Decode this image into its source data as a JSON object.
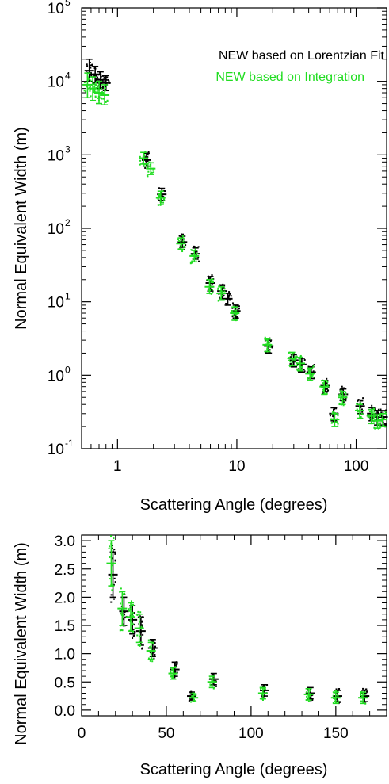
{
  "colors": {
    "lorentzian": "#000000",
    "integration": "#22dd22"
  },
  "chart_data": [
    {
      "type": "scatter",
      "xscale": "log",
      "yscale": "log",
      "xlabel": "Scattering Angle (degrees)",
      "ylabel": "Normal Equivalent Width (m)",
      "xlim": [
        0.5,
        180
      ],
      "ylim": [
        0.1,
        100000
      ],
      "x_ticks": [
        {
          "value": 1,
          "label": "1"
        },
        {
          "value": 10,
          "label": "10"
        },
        {
          "value": 100,
          "label": "100"
        }
      ],
      "y_ticks": [
        {
          "value": 0.1,
          "base": "10",
          "exp": "-1"
        },
        {
          "value": 1,
          "base": "10",
          "exp": "0"
        },
        {
          "value": 10,
          "base": "10",
          "exp": "1"
        },
        {
          "value": 100,
          "base": "10",
          "exp": "2"
        },
        {
          "value": 1000,
          "base": "10",
          "exp": "3"
        },
        {
          "value": 10000,
          "base": "10",
          "exp": "4"
        },
        {
          "value": 100000,
          "base": "10",
          "exp": "5"
        }
      ],
      "legend": {
        "position": "top-right",
        "entries": [
          "NEW based on Lorentzian Fit",
          "NEW based on Integration"
        ]
      },
      "series": [
        {
          "name": "NEW based on Lorentzian Fit",
          "color": "#000000",
          "points": [
            {
              "x": 0.58,
              "y": 14000,
              "lo": 10000,
              "hi": 20000
            },
            {
              "x": 0.65,
              "y": 12500,
              "lo": 9500,
              "hi": 16000
            },
            {
              "x": 0.72,
              "y": 10500,
              "lo": 8000,
              "hi": 13500
            },
            {
              "x": 0.8,
              "y": 9500,
              "lo": 7500,
              "hi": 12000
            },
            {
              "x": 1.75,
              "y": 850,
              "lo": 700,
              "hi": 1050
            },
            {
              "x": 2.35,
              "y": 290,
              "lo": 240,
              "hi": 350
            },
            {
              "x": 3.5,
              "y": 65,
              "lo": 55,
              "hi": 78
            },
            {
              "x": 4.5,
              "y": 45,
              "lo": 38,
              "hi": 54
            },
            {
              "x": 6.0,
              "y": 18,
              "lo": 14,
              "hi": 22
            },
            {
              "x": 7.5,
              "y": 14,
              "lo": 11,
              "hi": 17
            },
            {
              "x": 8.4,
              "y": 11,
              "lo": 9,
              "hi": 13
            },
            {
              "x": 9.8,
              "y": 7.5,
              "lo": 6,
              "hi": 9
            },
            {
              "x": 18.5,
              "y": 2.5,
              "lo": 2.0,
              "hi": 3.0
            },
            {
              "x": 30,
              "y": 1.6,
              "lo": 1.3,
              "hi": 1.9
            },
            {
              "x": 35,
              "y": 1.4,
              "lo": 1.1,
              "hi": 1.7
            },
            {
              "x": 42,
              "y": 1.1,
              "lo": 0.9,
              "hi": 1.3
            },
            {
              "x": 55,
              "y": 0.72,
              "lo": 0.6,
              "hi": 0.85
            },
            {
              "x": 65,
              "y": 0.3,
              "lo": 0.24,
              "hi": 0.36
            },
            {
              "x": 78,
              "y": 0.55,
              "lo": 0.45,
              "hi": 0.65
            },
            {
              "x": 108,
              "y": 0.38,
              "lo": 0.3,
              "hi": 0.46
            },
            {
              "x": 135,
              "y": 0.3,
              "lo": 0.24,
              "hi": 0.36
            },
            {
              "x": 150,
              "y": 0.27,
              "lo": 0.21,
              "hi": 0.33
            },
            {
              "x": 168,
              "y": 0.27,
              "lo": 0.21,
              "hi": 0.33
            }
          ]
        },
        {
          "name": "NEW based on Integration",
          "color": "#22dd22",
          "points": [
            {
              "x": 0.56,
              "y": 9000,
              "lo": 6000,
              "hi": 13000
            },
            {
              "x": 0.62,
              "y": 8000,
              "lo": 5500,
              "hi": 11500
            },
            {
              "x": 0.7,
              "y": 7000,
              "lo": 5000,
              "hi": 10000
            },
            {
              "x": 0.78,
              "y": 6500,
              "lo": 4800,
              "hi": 9000
            },
            {
              "x": 1.65,
              "y": 900,
              "lo": 750,
              "hi": 1080
            },
            {
              "x": 1.9,
              "y": 650,
              "lo": 540,
              "hi": 780
            },
            {
              "x": 2.3,
              "y": 260,
              "lo": 210,
              "hi": 320
            },
            {
              "x": 3.4,
              "y": 62,
              "lo": 52,
              "hi": 74
            },
            {
              "x": 4.4,
              "y": 42,
              "lo": 35,
              "hi": 50
            },
            {
              "x": 5.9,
              "y": 16,
              "lo": 13,
              "hi": 20
            },
            {
              "x": 7.4,
              "y": 13,
              "lo": 10.5,
              "hi": 16
            },
            {
              "x": 9.6,
              "y": 7,
              "lo": 5.6,
              "hi": 8.5
            },
            {
              "x": 18,
              "y": 2.6,
              "lo": 2.1,
              "hi": 3.1
            },
            {
              "x": 29,
              "y": 1.7,
              "lo": 1.35,
              "hi": 2.05
            },
            {
              "x": 34,
              "y": 1.45,
              "lo": 1.15,
              "hi": 1.75
            },
            {
              "x": 41,
              "y": 1.05,
              "lo": 0.85,
              "hi": 1.25
            },
            {
              "x": 54,
              "y": 0.7,
              "lo": 0.55,
              "hi": 0.85
            },
            {
              "x": 66,
              "y": 0.25,
              "lo": 0.2,
              "hi": 0.3
            },
            {
              "x": 77,
              "y": 0.5,
              "lo": 0.4,
              "hi": 0.6
            },
            {
              "x": 107,
              "y": 0.33,
              "lo": 0.26,
              "hi": 0.4
            },
            {
              "x": 134,
              "y": 0.28,
              "lo": 0.22,
              "hi": 0.34
            },
            {
              "x": 151,
              "y": 0.24,
              "lo": 0.19,
              "hi": 0.29
            },
            {
              "x": 167,
              "y": 0.25,
              "lo": 0.2,
              "hi": 0.3
            }
          ]
        }
      ]
    },
    {
      "type": "scatter",
      "xscale": "linear",
      "yscale": "linear",
      "xlabel": "Scattering Angle (degrees)",
      "ylabel": "Normal Equivalent Width (m)",
      "xlim": [
        0,
        180
      ],
      "ylim": [
        -0.1,
        3.1
      ],
      "x_ticks": [
        {
          "value": 0,
          "label": "0"
        },
        {
          "value": 50,
          "label": "50"
        },
        {
          "value": 100,
          "label": "100"
        },
        {
          "value": 150,
          "label": "150"
        }
      ],
      "y_ticks": [
        {
          "value": 0.0,
          "label": "0.0"
        },
        {
          "value": 0.5,
          "label": "0.5"
        },
        {
          "value": 1.0,
          "label": "1.0"
        },
        {
          "value": 1.5,
          "label": "1.5"
        },
        {
          "value": 2.0,
          "label": "2.0"
        },
        {
          "value": 2.5,
          "label": "2.5"
        },
        {
          "value": 3.0,
          "label": "3.0"
        }
      ],
      "series": [
        {
          "name": "NEW based on Lorentzian Fit",
          "color": "#000000",
          "points": [
            {
              "x": 18.5,
              "y": 2.4,
              "lo": 2.0,
              "hi": 2.8
            },
            {
              "x": 25,
              "y": 1.75,
              "lo": 1.5,
              "hi": 2.0
            },
            {
              "x": 30,
              "y": 1.6,
              "lo": 1.35,
              "hi": 1.85
            },
            {
              "x": 35,
              "y": 1.4,
              "lo": 1.15,
              "hi": 1.65
            },
            {
              "x": 42,
              "y": 1.1,
              "lo": 0.95,
              "hi": 1.25
            },
            {
              "x": 55,
              "y": 0.72,
              "lo": 0.6,
              "hi": 0.85
            },
            {
              "x": 65,
              "y": 0.25,
              "lo": 0.18,
              "hi": 0.32
            },
            {
              "x": 78,
              "y": 0.55,
              "lo": 0.45,
              "hi": 0.65
            },
            {
              "x": 108,
              "y": 0.35,
              "lo": 0.25,
              "hi": 0.45
            },
            {
              "x": 135,
              "y": 0.3,
              "lo": 0.2,
              "hi": 0.4
            },
            {
              "x": 151,
              "y": 0.25,
              "lo": 0.15,
              "hi": 0.35
            },
            {
              "x": 167,
              "y": 0.25,
              "lo": 0.15,
              "hi": 0.35
            }
          ]
        },
        {
          "name": "NEW based on Integration",
          "color": "#22dd22",
          "points": [
            {
              "x": 17.5,
              "y": 2.6,
              "lo": 2.2,
              "hi": 3.0
            },
            {
              "x": 24,
              "y": 1.8,
              "lo": 1.5,
              "hi": 2.1
            },
            {
              "x": 29,
              "y": 1.65,
              "lo": 1.4,
              "hi": 1.9
            },
            {
              "x": 34,
              "y": 1.45,
              "lo": 1.2,
              "hi": 1.7
            },
            {
              "x": 41,
              "y": 1.05,
              "lo": 0.9,
              "hi": 1.2
            },
            {
              "x": 54,
              "y": 0.65,
              "lo": 0.55,
              "hi": 0.75
            },
            {
              "x": 66,
              "y": 0.22,
              "lo": 0.15,
              "hi": 0.29
            },
            {
              "x": 77,
              "y": 0.5,
              "lo": 0.4,
              "hi": 0.6
            },
            {
              "x": 107,
              "y": 0.3,
              "lo": 0.2,
              "hi": 0.4
            },
            {
              "x": 134,
              "y": 0.28,
              "lo": 0.18,
              "hi": 0.38
            },
            {
              "x": 150,
              "y": 0.22,
              "lo": 0.12,
              "hi": 0.32
            },
            {
              "x": 166,
              "y": 0.22,
              "lo": 0.12,
              "hi": 0.32
            }
          ]
        }
      ]
    }
  ]
}
